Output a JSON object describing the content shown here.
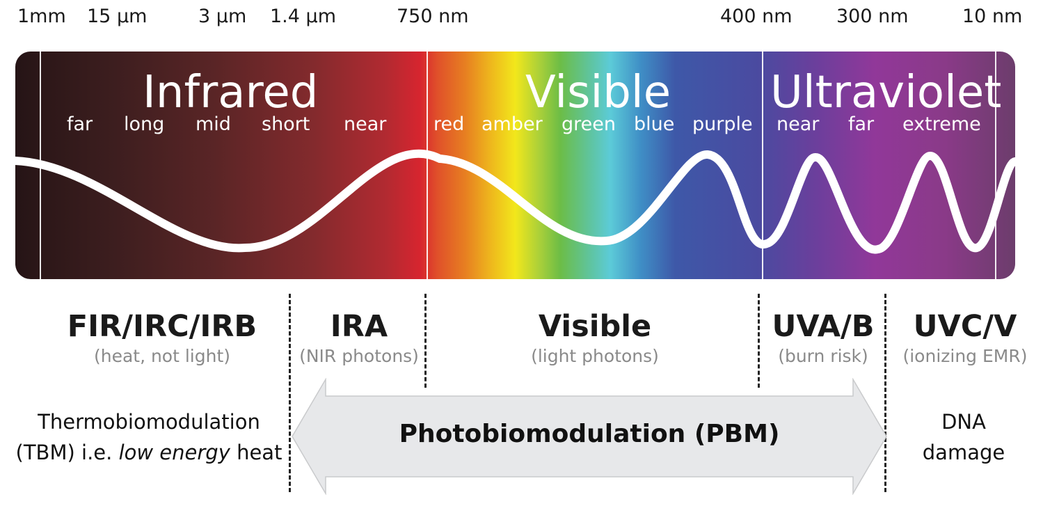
{
  "wavelengths": [
    "1mm",
    "15 µm",
    "3 µm",
    "1.4 µm",
    "750 nm",
    "400 nm",
    "300 nm",
    "10 nm"
  ],
  "bands": {
    "infrared": {
      "title": "Infrared",
      "subs": [
        "far",
        "long",
        "mid",
        "short",
        "near"
      ]
    },
    "visible": {
      "title": "Visible",
      "subs": [
        "red",
        "amber",
        "green",
        "blue",
        "purple"
      ]
    },
    "ultraviolet": {
      "title": "Ultraviolet",
      "subs": [
        "near",
        "far",
        "extreme"
      ]
    }
  },
  "regions": [
    {
      "title": "FIR/IRC/IRB",
      "caption": "(heat, not light)"
    },
    {
      "title": "IRA",
      "caption": "(NIR photons)"
    },
    {
      "title": "Visible",
      "caption": "(light photons)"
    },
    {
      "title": "UVA/B",
      "caption": "(burn risk)"
    },
    {
      "title": "UVC/V",
      "caption": "(ionizing EMR)"
    }
  ],
  "tbm": {
    "line1": "Thermobiomodulation",
    "line2_prefix": "(TBM) i.e. ",
    "line2_italic": "low energy",
    "line2_suffix": " heat"
  },
  "pbm": {
    "label": "Photobiomodulation (PBM)"
  },
  "dna": {
    "line1": "DNA",
    "line2": "damage"
  }
}
